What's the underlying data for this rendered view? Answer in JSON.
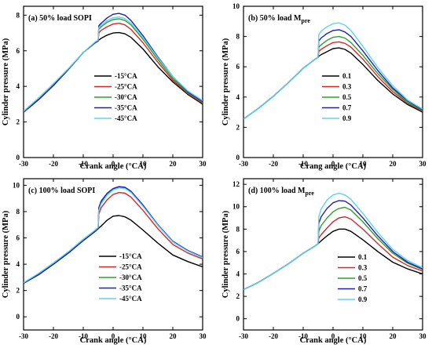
{
  "chart_data": [
    {
      "type": "line",
      "panel_label": "(a) 50% load SOPI",
      "title_main": "(a) 50% load SOPI",
      "title_sub": "",
      "xlabel": "Crank angle (°CA)",
      "ylabel": "Cylinder pressure (MPa)",
      "xlim": [
        -30,
        30
      ],
      "ylim": [
        0,
        8.5
      ],
      "xticks": [
        -30,
        -20,
        -10,
        0,
        10,
        20,
        30
      ],
      "yticks": [
        0,
        2,
        4,
        6,
        8
      ],
      "legend_position": "center",
      "series": [
        {
          "name": "-15°CA",
          "color": "#000000",
          "x": [
            -30,
            -25,
            -20,
            -15,
            -10,
            -6,
            -4,
            -2,
            0,
            2,
            4,
            6,
            10,
            15,
            20,
            25,
            30
          ],
          "y": [
            2.55,
            3.25,
            4.05,
            4.95,
            5.9,
            6.45,
            6.7,
            6.88,
            7.0,
            7.02,
            6.95,
            6.75,
            6.1,
            5.1,
            4.25,
            3.55,
            3.0
          ]
        },
        {
          "name": "-25°CA",
          "color": "#d62728",
          "x": [
            -30,
            -25,
            -20,
            -15,
            -10,
            -6,
            -5,
            -4.8,
            -4,
            -2,
            0,
            2,
            4,
            6,
            10,
            15,
            20,
            25,
            30
          ],
          "y": [
            2.55,
            3.25,
            4.05,
            4.95,
            5.9,
            6.45,
            6.55,
            7.0,
            7.15,
            7.35,
            7.5,
            7.55,
            7.45,
            7.2,
            6.45,
            5.35,
            4.35,
            3.6,
            3.05
          ]
        },
        {
          "name": "-30°CA",
          "color": "#2ca02c",
          "x": [
            -30,
            -25,
            -20,
            -15,
            -10,
            -6,
            -5,
            -4.8,
            -4,
            -2,
            0,
            2,
            4,
            6,
            10,
            15,
            20,
            25,
            30
          ],
          "y": [
            2.55,
            3.25,
            4.05,
            4.95,
            5.9,
            6.45,
            6.55,
            7.2,
            7.35,
            7.6,
            7.75,
            7.8,
            7.7,
            7.45,
            6.65,
            5.5,
            4.45,
            3.65,
            3.1
          ]
        },
        {
          "name": "-35°CA",
          "color": "#1f1fb4",
          "x": [
            -30,
            -25,
            -20,
            -15,
            -10,
            -6,
            -5,
            -4.8,
            -4,
            -2,
            0,
            2,
            4,
            6,
            10,
            15,
            20,
            25,
            30
          ],
          "y": [
            2.55,
            3.25,
            4.05,
            4.95,
            5.9,
            6.45,
            6.55,
            7.4,
            7.55,
            7.85,
            8.05,
            8.1,
            8.0,
            7.7,
            6.85,
            5.65,
            4.55,
            3.7,
            3.15
          ]
        },
        {
          "name": "-45°CA",
          "color": "#5fd3ee",
          "x": [
            -30,
            -25,
            -20,
            -15,
            -10,
            -6,
            -5,
            -4.8,
            -4,
            -2,
            0,
            2,
            4,
            6,
            10,
            15,
            20,
            25,
            30
          ],
          "y": [
            2.6,
            3.35,
            4.15,
            5.0,
            5.9,
            6.5,
            6.6,
            7.3,
            7.45,
            7.7,
            7.85,
            7.9,
            7.8,
            7.55,
            6.75,
            5.6,
            4.55,
            3.75,
            3.2
          ]
        }
      ]
    },
    {
      "type": "line",
      "panel_label": "(b) 50% load Mpre",
      "title_main": "(b) 50% load M",
      "title_sub": "pre",
      "xlabel": "Crang angle (°CA)",
      "ylabel": "Cylinder pressure (MPa)",
      "xlim": [
        -30,
        30
      ],
      "ylim": [
        0,
        10
      ],
      "xticks": [
        -30,
        -20,
        -10,
        0,
        10,
        20,
        30
      ],
      "yticks": [
        0,
        2,
        4,
        6,
        8,
        10
      ],
      "legend_position": "center",
      "series": [
        {
          "name": "0.1",
          "color": "#000000",
          "x": [
            -30,
            -25,
            -20,
            -15,
            -10,
            -6,
            -5,
            -4.8,
            -4,
            -2,
            0,
            2,
            4,
            6,
            10,
            15,
            20,
            25,
            30
          ],
          "y": [
            2.55,
            3.25,
            4.05,
            4.95,
            5.9,
            6.5,
            6.62,
            6.7,
            6.8,
            7.0,
            7.2,
            7.25,
            7.15,
            6.9,
            6.15,
            5.1,
            4.2,
            3.5,
            3.0
          ]
        },
        {
          "name": "0.3",
          "color": "#d62728",
          "x": [
            -30,
            -25,
            -20,
            -15,
            -10,
            -6,
            -5,
            -4.8,
            -4,
            -2,
            0,
            2,
            4,
            6,
            10,
            15,
            20,
            25,
            30
          ],
          "y": [
            2.55,
            3.25,
            4.05,
            4.95,
            5.9,
            6.5,
            6.62,
            7.0,
            7.15,
            7.4,
            7.6,
            7.65,
            7.55,
            7.3,
            6.5,
            5.35,
            4.35,
            3.6,
            3.05
          ]
        },
        {
          "name": "0.5",
          "color": "#2ca02c",
          "x": [
            -30,
            -25,
            -20,
            -15,
            -10,
            -6,
            -5,
            -4.8,
            -4,
            -2,
            0,
            2,
            4,
            6,
            10,
            15,
            20,
            25,
            30
          ],
          "y": [
            2.55,
            3.25,
            4.05,
            4.95,
            5.9,
            6.5,
            6.62,
            7.3,
            7.45,
            7.75,
            7.95,
            8.0,
            7.9,
            7.6,
            6.75,
            5.55,
            4.5,
            3.65,
            3.1
          ]
        },
        {
          "name": "0.7",
          "color": "#1f1fb4",
          "x": [
            -30,
            -25,
            -20,
            -15,
            -10,
            -6,
            -5,
            -4.8,
            -4,
            -2,
            0,
            2,
            4,
            6,
            10,
            15,
            20,
            25,
            30
          ],
          "y": [
            2.55,
            3.25,
            4.05,
            4.95,
            5.9,
            6.5,
            6.62,
            7.7,
            7.9,
            8.2,
            8.4,
            8.45,
            8.3,
            8.0,
            7.05,
            5.75,
            4.6,
            3.75,
            3.15
          ]
        },
        {
          "name": "0.9",
          "color": "#5fd3ee",
          "x": [
            -30,
            -25,
            -20,
            -15,
            -10,
            -6,
            -5,
            -4.8,
            -4,
            -2,
            0,
            2,
            4,
            6,
            10,
            15,
            20,
            25,
            30
          ],
          "y": [
            2.55,
            3.25,
            4.05,
            4.95,
            5.9,
            6.5,
            6.62,
            8.1,
            8.35,
            8.65,
            8.85,
            8.9,
            8.75,
            8.4,
            7.35,
            5.95,
            4.75,
            3.8,
            3.2
          ]
        }
      ]
    },
    {
      "type": "line",
      "panel_label": "(c) 100% load SOPI",
      "title_main": "(c) 100% load SOPI",
      "title_sub": "",
      "xlabel": "Crank angle (°CA)",
      "ylabel": "Cylinder pressure (MPa)",
      "xlim": [
        -30,
        30
      ],
      "ylim": [
        -1,
        10.5
      ],
      "xticks": [
        -30,
        -20,
        -10,
        0,
        10,
        20,
        30
      ],
      "yticks": [
        0,
        2,
        4,
        6,
        8,
        10
      ],
      "legend_position": "center",
      "series": [
        {
          "name": "-15°CA",
          "color": "#000000",
          "x": [
            -30,
            -25,
            -20,
            -15,
            -10,
            -6,
            -4,
            -2,
            0,
            2,
            4,
            6,
            10,
            15,
            20,
            25,
            30
          ],
          "y": [
            2.55,
            3.2,
            4.0,
            4.85,
            5.8,
            6.5,
            6.9,
            7.35,
            7.65,
            7.7,
            7.6,
            7.35,
            6.6,
            5.6,
            4.7,
            4.2,
            3.8
          ]
        },
        {
          "name": "-25°CA",
          "color": "#d62728",
          "x": [
            -30,
            -25,
            -20,
            -15,
            -10,
            -6,
            -5,
            -4.8,
            -4,
            -2,
            0,
            2,
            4,
            6,
            10,
            15,
            20,
            25,
            30
          ],
          "y": [
            2.55,
            3.2,
            4.0,
            4.85,
            5.8,
            6.5,
            6.7,
            7.8,
            8.3,
            8.9,
            9.3,
            9.45,
            9.4,
            9.1,
            8.1,
            6.7,
            5.5,
            4.85,
            4.4
          ]
        },
        {
          "name": "-30°CA",
          "color": "#2ca02c",
          "x": [
            -30,
            -25,
            -20,
            -15,
            -10,
            -6,
            -5,
            -4.8,
            -4,
            -2,
            0,
            2,
            4,
            6,
            10,
            15,
            20,
            25,
            30
          ],
          "y": [
            2.55,
            3.2,
            4.0,
            4.85,
            5.8,
            6.5,
            6.7,
            8.2,
            8.7,
            9.3,
            9.7,
            9.85,
            9.8,
            9.5,
            8.45,
            6.95,
            5.7,
            5.0,
            4.5
          ]
        },
        {
          "name": "-35°CA",
          "color": "#1f1fb4",
          "x": [
            -30,
            -25,
            -20,
            -15,
            -10,
            -6,
            -5,
            -4.8,
            -4,
            -2,
            0,
            2,
            4,
            6,
            10,
            15,
            20,
            25,
            30
          ],
          "y": [
            2.55,
            3.2,
            4.0,
            4.85,
            5.8,
            6.5,
            6.7,
            8.3,
            8.8,
            9.4,
            9.75,
            9.9,
            9.85,
            9.55,
            8.5,
            7.0,
            5.75,
            5.05,
            4.55
          ]
        },
        {
          "name": "-45°CA",
          "color": "#5fd3ee",
          "x": [
            -30,
            -25,
            -20,
            -15,
            -10,
            -6,
            -5,
            -4.8,
            -4,
            -2,
            0,
            2,
            4,
            6,
            10,
            15,
            20,
            25,
            30
          ],
          "y": [
            2.6,
            3.3,
            4.1,
            4.95,
            5.9,
            6.6,
            6.8,
            8.1,
            8.6,
            9.25,
            9.65,
            9.8,
            9.75,
            9.45,
            8.4,
            6.95,
            5.7,
            5.0,
            4.5
          ]
        }
      ]
    },
    {
      "type": "line",
      "panel_label": "(d) 100% load Mpre",
      "title_main": "(d) 100% load M",
      "title_sub": "pre",
      "xlabel": "Crank angle (°CA)",
      "ylabel": "Cylinder pressure (MPa)",
      "xlim": [
        -30,
        30
      ],
      "ylim": [
        -1,
        12.5
      ],
      "xticks": [
        -30,
        -20,
        -10,
        0,
        10,
        20,
        30
      ],
      "yticks": [
        0,
        2,
        4,
        6,
        8,
        10,
        12
      ],
      "legend_position": "center",
      "series": [
        {
          "name": "0.1",
          "color": "#000000",
          "x": [
            -30,
            -25,
            -20,
            -15,
            -10,
            -6,
            -5,
            -4,
            -2,
            0,
            2,
            4,
            6,
            10,
            15,
            20,
            25,
            30
          ],
          "y": [
            2.6,
            3.25,
            4.05,
            4.9,
            5.85,
            6.5,
            6.7,
            6.95,
            7.4,
            7.8,
            8.0,
            8.0,
            7.8,
            7.05,
            6.0,
            5.05,
            4.45,
            4.0
          ]
        },
        {
          "name": "0.3",
          "color": "#d62728",
          "x": [
            -30,
            -25,
            -20,
            -15,
            -10,
            -6,
            -5,
            -4.8,
            -4,
            -2,
            0,
            2,
            4,
            6,
            10,
            15,
            20,
            25,
            30
          ],
          "y": [
            2.6,
            3.25,
            4.05,
            4.9,
            5.85,
            6.5,
            6.7,
            7.2,
            7.5,
            8.1,
            8.65,
            9.0,
            9.1,
            8.9,
            8.0,
            6.7,
            5.5,
            4.75,
            4.25
          ]
        },
        {
          "name": "0.5",
          "color": "#2ca02c",
          "x": [
            -30,
            -25,
            -20,
            -15,
            -10,
            -6,
            -5,
            -4.8,
            -4,
            -2,
            0,
            2,
            4,
            6,
            10,
            15,
            20,
            25,
            30
          ],
          "y": [
            2.6,
            3.25,
            4.05,
            4.9,
            5.85,
            6.5,
            6.7,
            7.8,
            8.3,
            9.0,
            9.55,
            9.85,
            9.95,
            9.7,
            8.65,
            7.15,
            5.85,
            4.95,
            4.4
          ]
        },
        {
          "name": "0.7",
          "color": "#1f1fb4",
          "x": [
            -30,
            -25,
            -20,
            -15,
            -10,
            -6,
            -5,
            -4.8,
            -4,
            -2,
            0,
            2,
            4,
            6,
            10,
            15,
            20,
            25,
            30
          ],
          "y": [
            2.6,
            3.25,
            4.05,
            4.9,
            5.85,
            6.5,
            6.7,
            8.5,
            9.1,
            9.85,
            10.35,
            10.55,
            10.5,
            10.15,
            9.0,
            7.4,
            6.0,
            5.05,
            4.45
          ]
        },
        {
          "name": "0.9",
          "color": "#5fd3ee",
          "x": [
            -30,
            -25,
            -20,
            -15,
            -10,
            -6,
            -5,
            -4.8,
            -4,
            -2,
            0,
            2,
            4,
            6,
            10,
            15,
            20,
            25,
            30
          ],
          "y": [
            2.6,
            3.25,
            4.05,
            4.9,
            5.85,
            6.5,
            6.7,
            9.1,
            9.8,
            10.6,
            11.05,
            11.2,
            11.05,
            10.65,
            9.4,
            7.7,
            6.2,
            5.2,
            4.55
          ]
        }
      ]
    }
  ]
}
